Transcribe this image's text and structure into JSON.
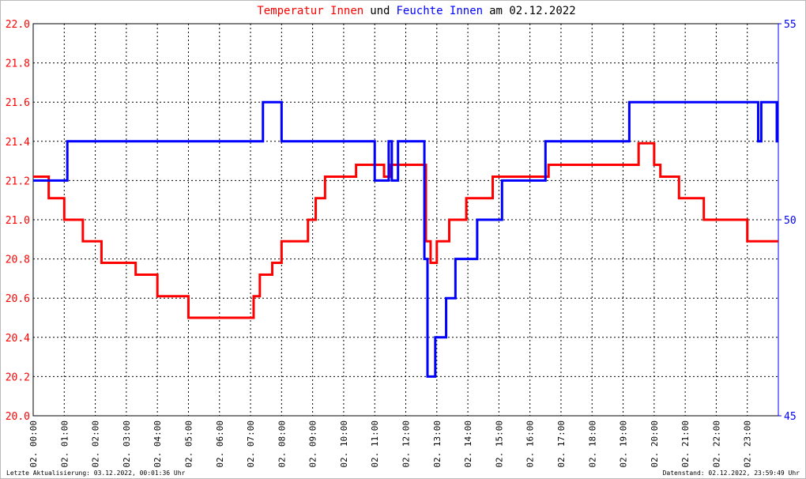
{
  "chart_data": {
    "type": "line",
    "step": true,
    "title": [
      {
        "text": "Temperatur Innen",
        "color": "#ff0000"
      },
      {
        "text": "und",
        "color": "#000000"
      },
      {
        "text": "Feuchte Innen",
        "color": "#0000ff"
      },
      {
        "text": "am 02.12.2022",
        "color": "#000000"
      }
    ],
    "footer_left": "Letzte Aktualisierung: 03.12.2022, 00:01:36 Uhr",
    "footer_right": "Datenstand: 02.12.2022, 23:59:49 Uhr",
    "grid": true,
    "xlim": [
      0,
      24
    ],
    "xticks": [
      {
        "value": 0,
        "label": "02. 00:00"
      },
      {
        "value": 1,
        "label": "02. 01:00"
      },
      {
        "value": 2,
        "label": "02. 02:00"
      },
      {
        "value": 3,
        "label": "02. 03:00"
      },
      {
        "value": 4,
        "label": "02. 04:00"
      },
      {
        "value": 5,
        "label": "02. 05:00"
      },
      {
        "value": 6,
        "label": "02. 06:00"
      },
      {
        "value": 7,
        "label": "02. 07:00"
      },
      {
        "value": 8,
        "label": "02. 08:00"
      },
      {
        "value": 9,
        "label": "02. 09:00"
      },
      {
        "value": 10,
        "label": "02. 10:00"
      },
      {
        "value": 11,
        "label": "02. 11:00"
      },
      {
        "value": 12,
        "label": "02. 12:00"
      },
      {
        "value": 13,
        "label": "02. 13:00"
      },
      {
        "value": 14,
        "label": "02. 14:00"
      },
      {
        "value": 15,
        "label": "02. 15:00"
      },
      {
        "value": 16,
        "label": "02. 16:00"
      },
      {
        "value": 17,
        "label": "02. 17:00"
      },
      {
        "value": 18,
        "label": "02. 18:00"
      },
      {
        "value": 19,
        "label": "02. 19:00"
      },
      {
        "value": 20,
        "label": "02. 20:00"
      },
      {
        "value": 21,
        "label": "02. 21:00"
      },
      {
        "value": 22,
        "label": "02. 22:00"
      },
      {
        "value": 23,
        "label": "02. 23:00"
      }
    ],
    "ylim": [
      20,
      22
    ],
    "yticks": [
      {
        "value": 20,
        "label": "20.0"
      },
      20.2,
      20.4,
      20.6,
      20.8,
      {
        "value": 21,
        "label": "21.0"
      },
      21.2,
      21.4,
      21.6,
      21.8,
      {
        "value": 22,
        "label": "22.0"
      }
    ],
    "y_color": "#ff0000",
    "y2lim": [
      45,
      55
    ],
    "y2ticks": [
      45,
      50,
      55
    ],
    "y2_color": "#0000ff",
    "series": [
      {
        "name": "Temperatur Innen",
        "color": "#ff0000",
        "axis": "y",
        "x": [
          0,
          0.5,
          1.0,
          1.6,
          2.2,
          3.3,
          4.0,
          5.0,
          7.1,
          7.3,
          7.7,
          8.0,
          8.85,
          9.1,
          9.4,
          10.4,
          11.3,
          11.5,
          12.65,
          12.8,
          13.0,
          13.4,
          13.95,
          14.8,
          16.6,
          19.5,
          20.0,
          20.2,
          20.8,
          21.6,
          23.0,
          24
        ],
        "values": [
          21.22,
          21.11,
          21.0,
          20.89,
          20.78,
          20.72,
          20.61,
          20.5,
          20.61,
          20.72,
          20.78,
          20.89,
          21.0,
          21.11,
          21.22,
          21.28,
          21.22,
          21.28,
          20.89,
          20.78,
          20.89,
          21.0,
          21.11,
          21.22,
          21.28,
          21.39,
          21.28,
          21.22,
          21.11,
          21.0,
          20.89,
          20.89
        ]
      },
      {
        "name": "Feuchte Innen",
        "color": "#0000ff",
        "axis": "y2",
        "x": [
          0,
          1.1,
          7.4,
          8.0,
          11.0,
          11.45,
          11.55,
          11.75,
          12.6,
          12.7,
          12.95,
          13.3,
          13.6,
          14.3,
          15.1,
          16.5,
          19.2,
          23.35,
          23.45,
          23.95,
          24
        ],
        "values": [
          51,
          52,
          53,
          52,
          51,
          52,
          51,
          52,
          49,
          46,
          47,
          48,
          49,
          50,
          51,
          52,
          53,
          52,
          53,
          52,
          52
        ]
      }
    ]
  }
}
